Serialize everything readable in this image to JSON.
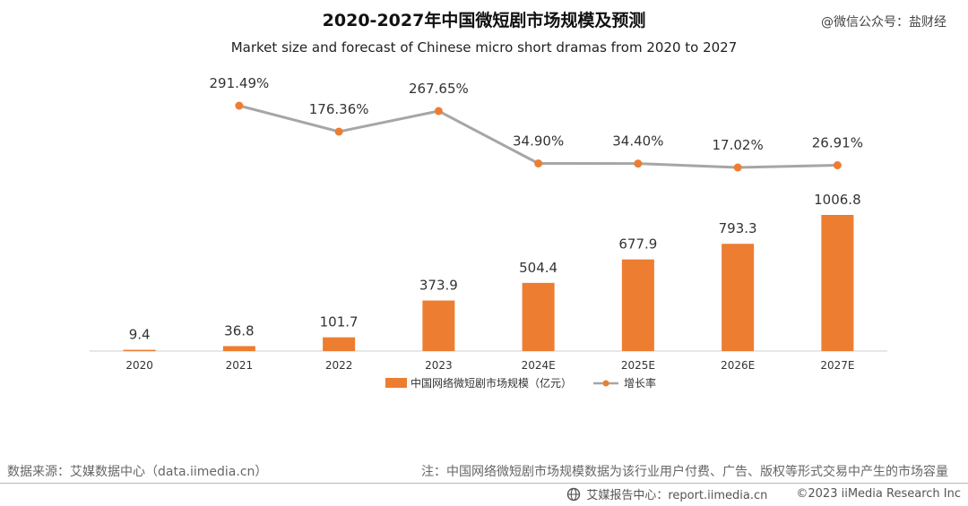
{
  "watermark": "@微信公众号：盐财经",
  "chart_data": {
    "type": "bar",
    "title": "2020-2027年中国微短剧市场规模及预测",
    "subtitle": "Market size and forecast of Chinese micro short dramas from 2020 to 2027",
    "categories": [
      "2020",
      "2021",
      "2022",
      "2023",
      "2024E",
      "2025E",
      "2026E",
      "2027E"
    ],
    "series": [
      {
        "name": "中国网络微短剧市场规模（亿元）",
        "type": "bar",
        "color": "#ED7D31",
        "values": [
          9.4,
          36.8,
          101.7,
          373.9,
          504.4,
          677.9,
          793.3,
          1006.8
        ],
        "labels": [
          "9.4",
          "36.8",
          "101.7",
          "373.9",
          "504.4",
          "677.9",
          "793.3",
          "1006.8"
        ]
      },
      {
        "name": "增长率",
        "type": "line",
        "color": "#A6A6A6",
        "marker_color": "#ED7D31",
        "values": [
          null,
          291.49,
          176.36,
          267.65,
          34.9,
          34.4,
          17.02,
          26.91
        ],
        "labels": [
          "",
          "291.49%",
          "176.36%",
          "267.65%",
          "34.90%",
          "34.40%",
          "17.02%",
          "26.91%"
        ]
      }
    ],
    "ylim_bar": [
      0,
      1150
    ],
    "ylim_line": [
      0,
      320
    ],
    "legend_position": "bottom",
    "grid": false
  },
  "footer": {
    "source": "数据来源：艾媒数据中心（data.iimedia.cn）",
    "note": "注：中国网络微短剧市场规模数据为该行业用户付费、广告、版权等形式交易中产生的市场容量",
    "report": "艾媒报告中心：report.iimedia.cn",
    "copyright": "©2023  iiMedia Research Inc"
  }
}
